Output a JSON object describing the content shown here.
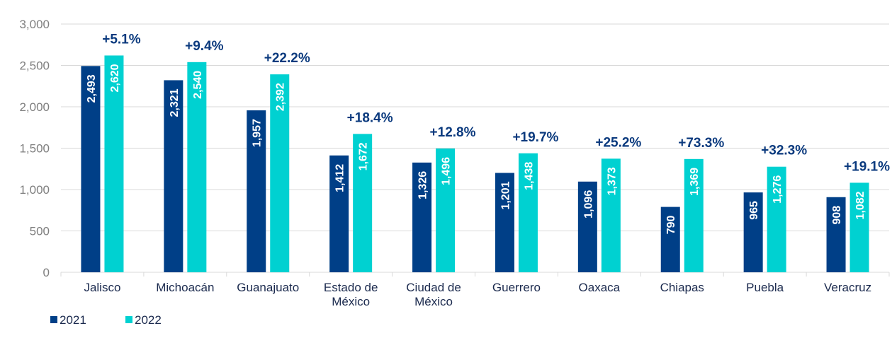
{
  "chart_data": {
    "type": "bar",
    "title": "",
    "xlabel": "",
    "ylabel": "",
    "ylim": [
      0,
      3000
    ],
    "yticks": [
      0,
      500,
      1000,
      1500,
      2000,
      2500,
      3000
    ],
    "ytick_labels": [
      "0",
      "500",
      "1,000",
      "1,500",
      "2,000",
      "2,500",
      "3,000"
    ],
    "grid": true,
    "legend_position": "bottom-left",
    "categories": [
      [
        "Jalisco"
      ],
      [
        "Michoacán"
      ],
      [
        "Guanajuato"
      ],
      [
        "Estado de",
        "México"
      ],
      [
        "Ciudad de",
        "México"
      ],
      [
        "Guerrero"
      ],
      [
        "Oaxaca"
      ],
      [
        "Chiapas"
      ],
      [
        "Puebla"
      ],
      [
        "Veracruz"
      ]
    ],
    "series": [
      {
        "name": "2021",
        "color": "#003f87",
        "values": [
          2493,
          2321,
          1957,
          1412,
          1326,
          1201,
          1096,
          790,
          965,
          908
        ],
        "labels": [
          "2,493",
          "2,321",
          "1,957",
          "1,412",
          "1,326",
          "1,201",
          "1,096",
          "790",
          "965",
          "908"
        ]
      },
      {
        "name": "2022",
        "color": "#00d1d1",
        "values": [
          2620,
          2540,
          2392,
          1672,
          1496,
          1438,
          1373,
          1369,
          1276,
          1082
        ],
        "labels": [
          "2,620",
          "2,540",
          "2,392",
          "1,672",
          "1,496",
          "1,438",
          "1,373",
          "1,369",
          "1,276",
          "1,082"
        ]
      }
    ],
    "annotations": [
      "+5.1%",
      "+9.4%",
      "+22.2%",
      "+18.4%",
      "+12.8%",
      "+19.7%",
      "+25.2%",
      "+73.3%",
      "+32.3%",
      "+19.1%"
    ]
  }
}
